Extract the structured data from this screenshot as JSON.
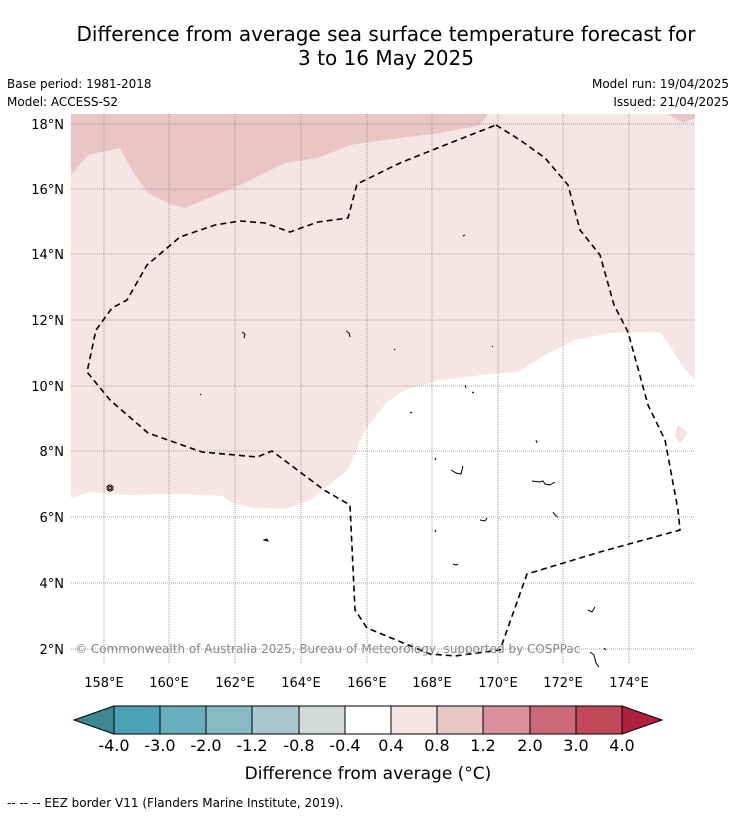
{
  "title_line1": "Difference from average sea surface temperature forecast for",
  "title_line2": "3 to 16 May 2025",
  "base_period": "Base period: 1981-2018",
  "model": "Model: ACCESS-S2",
  "model_run": "Model run: 19/04/2025",
  "issued": "Issued: 21/04/2025",
  "copyright": "© Commonwealth of Australia 2025, Bureau of Meteorology, supported by COSPPac",
  "lat_labels": [
    "18°N",
    "16°N",
    "14°N",
    "12°N",
    "10°N",
    "8°N",
    "6°N",
    "4°N",
    "2°N"
  ],
  "lon_labels": [
    "158°E",
    "160°E",
    "162°E",
    "164°E",
    "166°E",
    "168°E",
    "170°E",
    "172°E",
    "174°E"
  ],
  "colorbar": {
    "title": "Difference from average (°C)",
    "labels": [
      "-4.0",
      "-3.0",
      "-2.0",
      "-1.2",
      "-0.8",
      "-0.4",
      "0.4",
      "0.8",
      "1.2",
      "2.0",
      "3.0",
      "4.0"
    ],
    "colors": [
      "#4aa2b4",
      "#6aafbf",
      "#8ab9c6",
      "#a8c8cd",
      "#d3d9d9",
      "#ffffff",
      "#f5e5e4",
      "#e9c6c3",
      "#d9909a",
      "#cd6977",
      "#c04858"
    ],
    "under_color": "#3f8893",
    "over_color": "#b0203f"
  },
  "footer": "--  --  -- EEZ border V11 (Flanders Marine Institute, 2019)."
}
